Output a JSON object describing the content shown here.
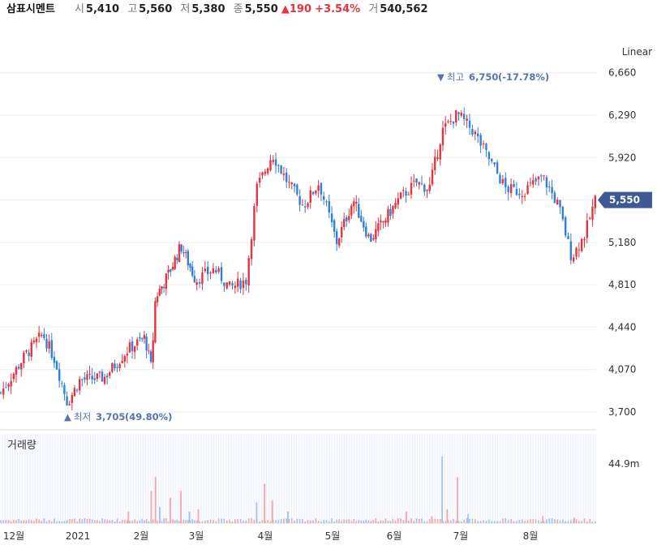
{
  "header": {
    "name": "삼표시멘트",
    "open_label": "시",
    "open": "5,410",
    "high_label": "고",
    "high": "5,560",
    "low_label": "저",
    "low": "5,380",
    "close_label": "종",
    "close": "5,550",
    "change_arrow": "▲",
    "change": "190",
    "change_pct": "+3.54%",
    "volume_label": "거",
    "volume": "540,562"
  },
  "scale_label": "Linear",
  "volume_label": "거래량",
  "colors": {
    "up": "#e5333f",
    "down": "#2f7fdc",
    "badge": "#3d5a96",
    "annotation": "#5673ad",
    "grid": "#eeeeee"
  },
  "chart_data": {
    "type": "candlestick",
    "y_scale": "linear",
    "ylim": [
      3580,
      6870
    ],
    "y_ticks": [
      "6,660",
      "6,290",
      "5,920",
      "5,550",
      "5,180",
      "4,810",
      "4,440",
      "4,070",
      "3,700"
    ],
    "y_tick_values": [
      6660,
      6290,
      5920,
      5550,
      5180,
      4810,
      4440,
      4070,
      3700
    ],
    "x_tick_labels": [
      "12월",
      "2021",
      "2월",
      "3월",
      "4월",
      "5월",
      "6월",
      "7월",
      "8월"
    ],
    "current_price": "5,550",
    "current_price_value": 5550,
    "high_annotation": {
      "arrow": "▼",
      "label": "최고",
      "value": "6,750",
      "pct": "(-17.78%)"
    },
    "low_annotation": {
      "arrow": "▲",
      "label": "최저",
      "value": "3,705",
      "pct": "(49.80%)"
    },
    "volume_tick": "44.9m",
    "price_path": [
      {
        "m": 0,
        "p": 3870
      },
      {
        "m": 0.5,
        "p": 4200
      },
      {
        "m": 0.85,
        "p": 4380
      },
      {
        "m": 1.1,
        "p": 4150
      },
      {
        "m": 1.35,
        "p": 3780
      },
      {
        "m": 1.6,
        "p": 3980
      },
      {
        "m": 2.1,
        "p": 4000
      },
      {
        "m": 2.6,
        "p": 4250
      },
      {
        "m": 2.95,
        "p": 4350
      },
      {
        "m": 3.1,
        "p": 4080
      },
      {
        "m": 3.2,
        "p": 4700
      },
      {
        "m": 3.5,
        "p": 4900
      },
      {
        "m": 3.8,
        "p": 5150
      },
      {
        "m": 4.15,
        "p": 4850
      },
      {
        "m": 4.5,
        "p": 4950
      },
      {
        "m": 4.8,
        "p": 4780
      },
      {
        "m": 5.1,
        "p": 4850
      },
      {
        "m": 5.3,
        "p": 5650
      },
      {
        "m": 5.6,
        "p": 5950
      },
      {
        "m": 5.9,
        "p": 5700
      },
      {
        "m": 6.2,
        "p": 5500
      },
      {
        "m": 6.5,
        "p": 5700
      },
      {
        "m": 6.85,
        "p": 5180
      },
      {
        "m": 7.2,
        "p": 5550
      },
      {
        "m": 7.55,
        "p": 5200
      },
      {
        "m": 7.9,
        "p": 5400
      },
      {
        "m": 8.2,
        "p": 5580
      },
      {
        "m": 8.5,
        "p": 5700
      },
      {
        "m": 8.75,
        "p": 5650
      },
      {
        "m": 9.0,
        "p": 6150
      },
      {
        "m": 9.3,
        "p": 6300
      },
      {
        "m": 9.6,
        "p": 6150
      },
      {
        "m": 9.9,
        "p": 5900
      },
      {
        "m": 10.2,
        "p": 5650
      },
      {
        "m": 10.5,
        "p": 5620
      },
      {
        "m": 10.9,
        "p": 5750
      },
      {
        "m": 11.2,
        "p": 5500
      },
      {
        "m": 11.45,
        "p": 5050
      },
      {
        "m": 11.7,
        "p": 5250
      },
      {
        "m": 11.9,
        "p": 5550
      }
    ],
    "volume_spikes": [
      {
        "m": 3.1,
        "v": 0.7
      },
      {
        "m": 3.2,
        "v": 1.0
      },
      {
        "m": 3.3,
        "v": 0.35
      },
      {
        "m": 3.55,
        "v": 0.55
      },
      {
        "m": 3.8,
        "v": 0.7
      },
      {
        "m": 4.0,
        "v": 0.25
      },
      {
        "m": 4.2,
        "v": 0.3
      },
      {
        "m": 2.6,
        "v": 0.25
      },
      {
        "m": 5.3,
        "v": 0.45
      },
      {
        "m": 5.45,
        "v": 0.85
      },
      {
        "m": 5.6,
        "v": 0.5
      },
      {
        "m": 5.9,
        "v": 0.25
      },
      {
        "m": 8.3,
        "v": 0.25
      },
      {
        "m": 8.8,
        "v": 0.15
      },
      {
        "m": 9.0,
        "v": 1.45
      },
      {
        "m": 9.1,
        "v": 0.3
      },
      {
        "m": 9.3,
        "v": 1.0
      },
      {
        "m": 9.5,
        "v": 0.2
      },
      {
        "m": 10.9,
        "v": 0.15
      },
      {
        "m": 11.5,
        "v": 0.12
      }
    ]
  }
}
